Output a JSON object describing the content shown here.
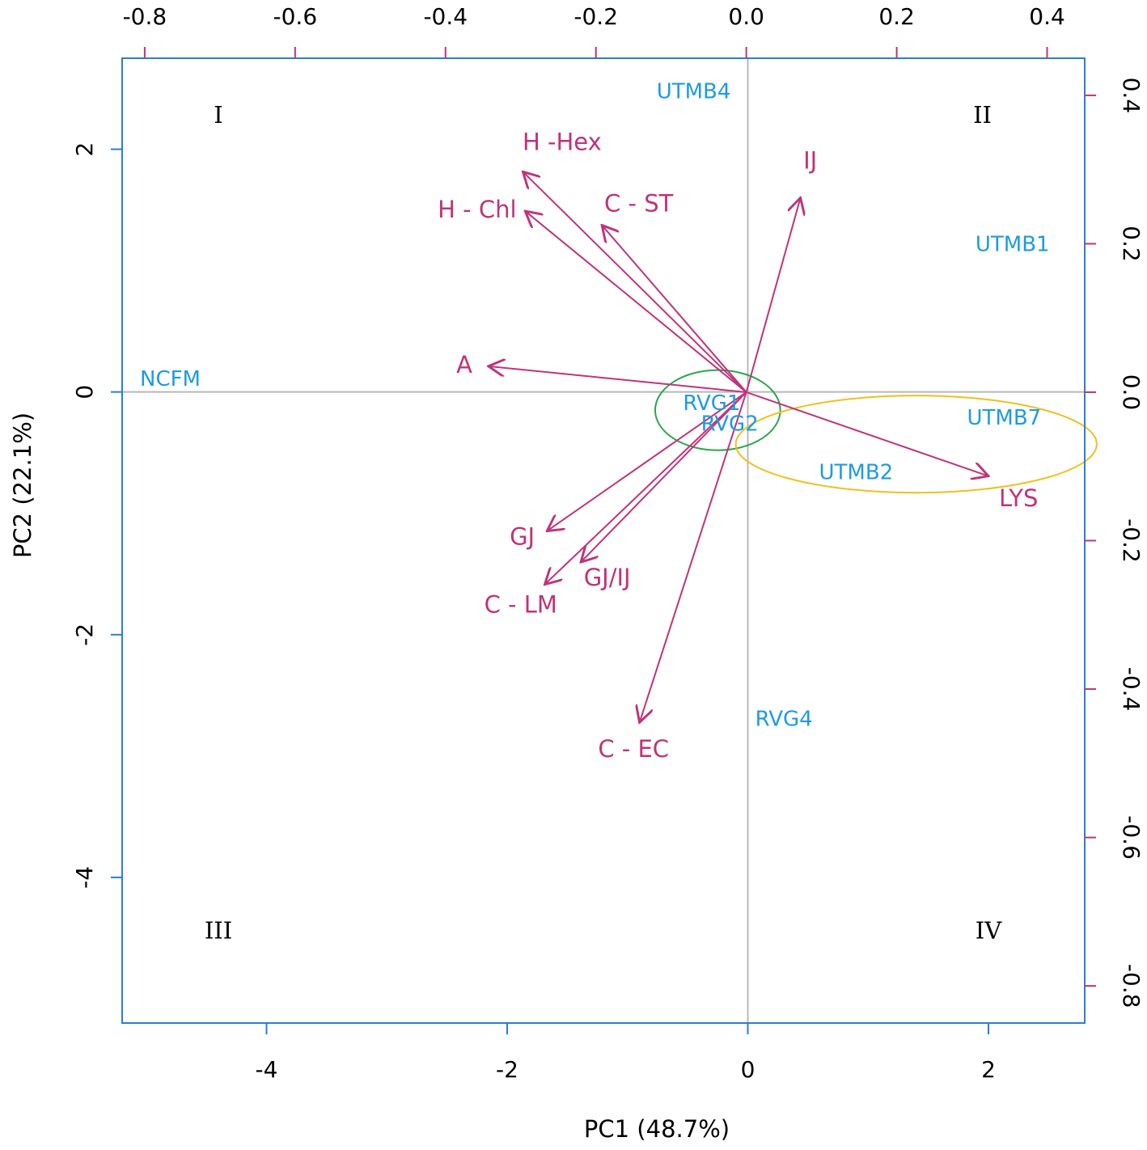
{
  "chart_data": {
    "type": "scatter",
    "subtype": "pca-biplot",
    "title": "",
    "xlabel": "PC1 (48.7%)",
    "ylabel": "PC2 (22.1%)",
    "xlim": [
      -5.2,
      2.8
    ],
    "ylim": [
      -5.2,
      2.75
    ],
    "x_ticks": [
      -4,
      -2,
      0,
      2
    ],
    "y_ticks": [
      -4,
      -2,
      0,
      2
    ],
    "x2_ticks": [
      -0.8,
      -0.6,
      -0.4,
      -0.2,
      0.0,
      0.2,
      0.4
    ],
    "y2_ticks": [
      -0.8,
      -0.6,
      -0.4,
      -0.2,
      0.0,
      0.2,
      0.4
    ],
    "x2lim": [
      -0.83,
      0.45
    ],
    "y2lim": [
      -0.85,
      0.45
    ],
    "grid": false,
    "reference_lines": {
      "x": 0,
      "y": 0
    },
    "colors": {
      "frame": "#2a7fd4",
      "variables": "#c0337a",
      "observations": "#1f9be0",
      "ticks_secondary": "#c0337a",
      "reference": "#b8b8b8",
      "ellipse_green": "#2aa84a",
      "ellipse_yellow": "#f0c020"
    },
    "observations": [
      {
        "label": "UTMB4",
        "x": -0.45,
        "y": 2.47
      },
      {
        "label": "UTMB1",
        "x": 2.2,
        "y": 1.21
      },
      {
        "label": "NCFM",
        "x": -4.8,
        "y": 0.1
      },
      {
        "label": "RVG1",
        "x": -0.3,
        "y": -0.1
      },
      {
        "label": "RVG2",
        "x": -0.15,
        "y": -0.27
      },
      {
        "label": "UTMB7",
        "x": 2.13,
        "y": -0.22
      },
      {
        "label": "UTMB2",
        "x": 0.9,
        "y": -0.67
      },
      {
        "label": "RVG4",
        "x": 0.3,
        "y": -2.7
      }
    ],
    "variables": [
      {
        "label": "H -Hex",
        "x": -0.297,
        "y": 0.297,
        "label_x": -0.245,
        "label_y": 0.335
      },
      {
        "label": "H - Chl",
        "x": -0.294,
        "y": 0.244,
        "label_x": -0.358,
        "label_y": 0.244
      },
      {
        "label": "C - ST",
        "x": -0.192,
        "y": 0.225,
        "label_x": -0.143,
        "label_y": 0.252
      },
      {
        "label": "IJ",
        "x": 0.072,
        "y": 0.262,
        "label_x": 0.085,
        "label_y": 0.31
      },
      {
        "label": "A",
        "x": -0.343,
        "y": 0.035,
        "label_x": -0.375,
        "label_y": 0.035
      },
      {
        "label": "LYS",
        "x": 0.322,
        "y": -0.113,
        "label_x": 0.362,
        "label_y": -0.145
      },
      {
        "label": "GJ",
        "x": -0.265,
        "y": -0.187,
        "label_x": -0.298,
        "label_y": -0.197
      },
      {
        "label": "GJ/IJ",
        "x": -0.22,
        "y": -0.229,
        "label_x": -0.185,
        "label_y": -0.252
      },
      {
        "label": "C - LM",
        "x": -0.268,
        "y": -0.259,
        "label_x": -0.3,
        "label_y": -0.288
      },
      {
        "label": "C - EC",
        "x": -0.142,
        "y": -0.445,
        "label_x": -0.15,
        "label_y": -0.483
      }
    ],
    "quadrant_labels": [
      {
        "label": "I",
        "x": -4.4,
        "y": 2.27
      },
      {
        "label": "II",
        "x": 1.95,
        "y": 2.27
      },
      {
        "label": "III",
        "x": -4.4,
        "y": -4.45
      },
      {
        "label": "IV",
        "x": 2.0,
        "y": -4.45
      }
    ],
    "ellipses": [
      {
        "name": "green",
        "cx": -0.25,
        "cy": -0.15,
        "rx": 0.52,
        "ry": 0.33,
        "color_key": "ellipse_green"
      },
      {
        "name": "yellow",
        "cx": 1.4,
        "cy": -0.43,
        "rx": 1.5,
        "ry": 0.4,
        "color_key": "ellipse_yellow"
      }
    ]
  }
}
